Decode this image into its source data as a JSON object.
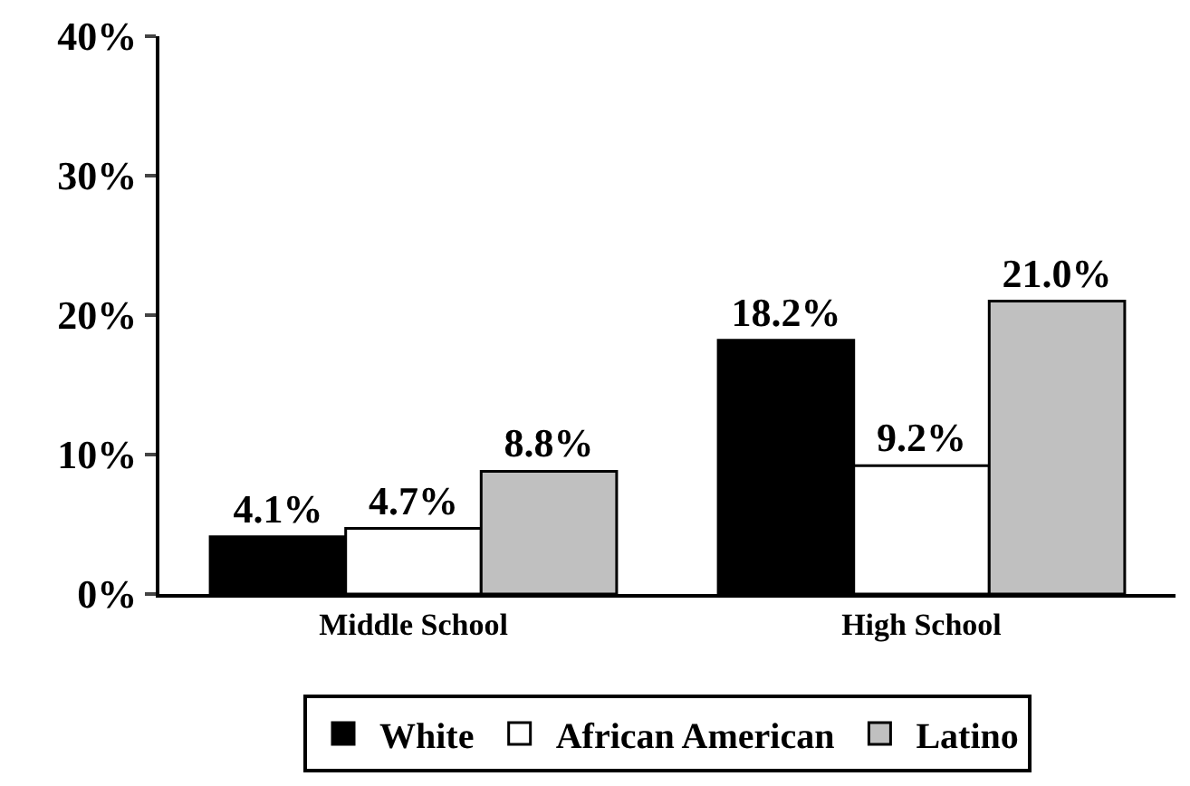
{
  "chart_data": {
    "type": "bar",
    "categories": [
      "Middle School",
      "High School"
    ],
    "series": [
      {
        "name": "White",
        "color": "#000000",
        "values": [
          4.1,
          18.2
        ],
        "value_labels": [
          "4.1%",
          "18.2%"
        ]
      },
      {
        "name": "African American",
        "color": "#ffffff",
        "values": [
          4.7,
          9.2
        ],
        "value_labels": [
          "4.7%",
          "9.2%"
        ]
      },
      {
        "name": "Latino",
        "color": "#c0c0c0",
        "values": [
          8.8,
          21.0
        ],
        "value_labels": [
          "8.8%",
          "21.0%"
        ]
      }
    ],
    "ylim": [
      0,
      40
    ],
    "yticks": [
      {
        "value": 0,
        "label": "0%"
      },
      {
        "value": 10,
        "label": "10%"
      },
      {
        "value": 20,
        "label": "20%"
      },
      {
        "value": 30,
        "label": "30%"
      },
      {
        "value": 40,
        "label": "40%"
      }
    ],
    "grid": false,
    "legend": "bottom"
  }
}
